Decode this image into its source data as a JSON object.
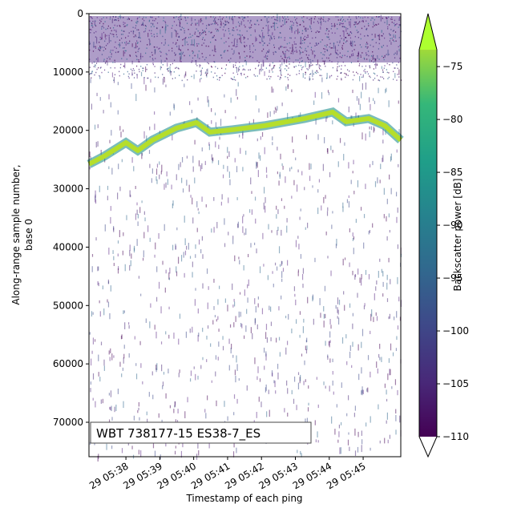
{
  "chart_data": {
    "type": "echogram",
    "ylabel": [
      "Along-range sample number,",
      "base 0"
    ],
    "xlabel": "Timestamp of each ping",
    "annotation": "WBT 738177-15 ES38-7_ES",
    "colorbar_label": "Backscatter power [dB]",
    "clim": [
      -110,
      -73.4
    ],
    "cticks": [
      {
        "value": -75,
        "label": "−75"
      },
      {
        "value": -80,
        "label": "−80"
      },
      {
        "value": -85,
        "label": "−85"
      },
      {
        "value": -90,
        "label": "−90"
      },
      {
        "value": -95,
        "label": "−95"
      },
      {
        "value": -100,
        "label": "−100"
      },
      {
        "value": -105,
        "label": "−105"
      },
      {
        "value": -110,
        "label": "−110"
      }
    ],
    "xlim": [
      336.91,
      346.11
    ],
    "xticks": [
      {
        "value": 338,
        "label": "29 05:38"
      },
      {
        "value": 339,
        "label": "29 05:39"
      },
      {
        "value": 340,
        "label": "29 05:40"
      },
      {
        "value": 341,
        "label": "29 05:41"
      },
      {
        "value": 342,
        "label": "29 05:42"
      },
      {
        "value": 343,
        "label": "29 05:43"
      },
      {
        "value": 344,
        "label": "29 05:44"
      },
      {
        "value": 345,
        "label": "29 05:45"
      }
    ],
    "ylim": [
      0,
      75900
    ],
    "y_inverted": true,
    "yticks": [
      0,
      10000,
      20000,
      30000,
      40000,
      50000,
      60000,
      70000
    ],
    "series": [
      {
        "color": "#b5de2b",
        "x": [
          336.91,
          337.36,
          338,
          338.35,
          338.78,
          339.49,
          340.08,
          340.48,
          341.14,
          342.09,
          343.27,
          344.1,
          344.5,
          345.16,
          345.64,
          346.11
        ],
        "values": [
          25790,
          24420,
          22090,
          23460,
          21670,
          19620,
          18660,
          20300,
          19890,
          19200,
          17970,
          16870,
          18520,
          17970,
          19200,
          21670
        ]
      }
    ]
  }
}
